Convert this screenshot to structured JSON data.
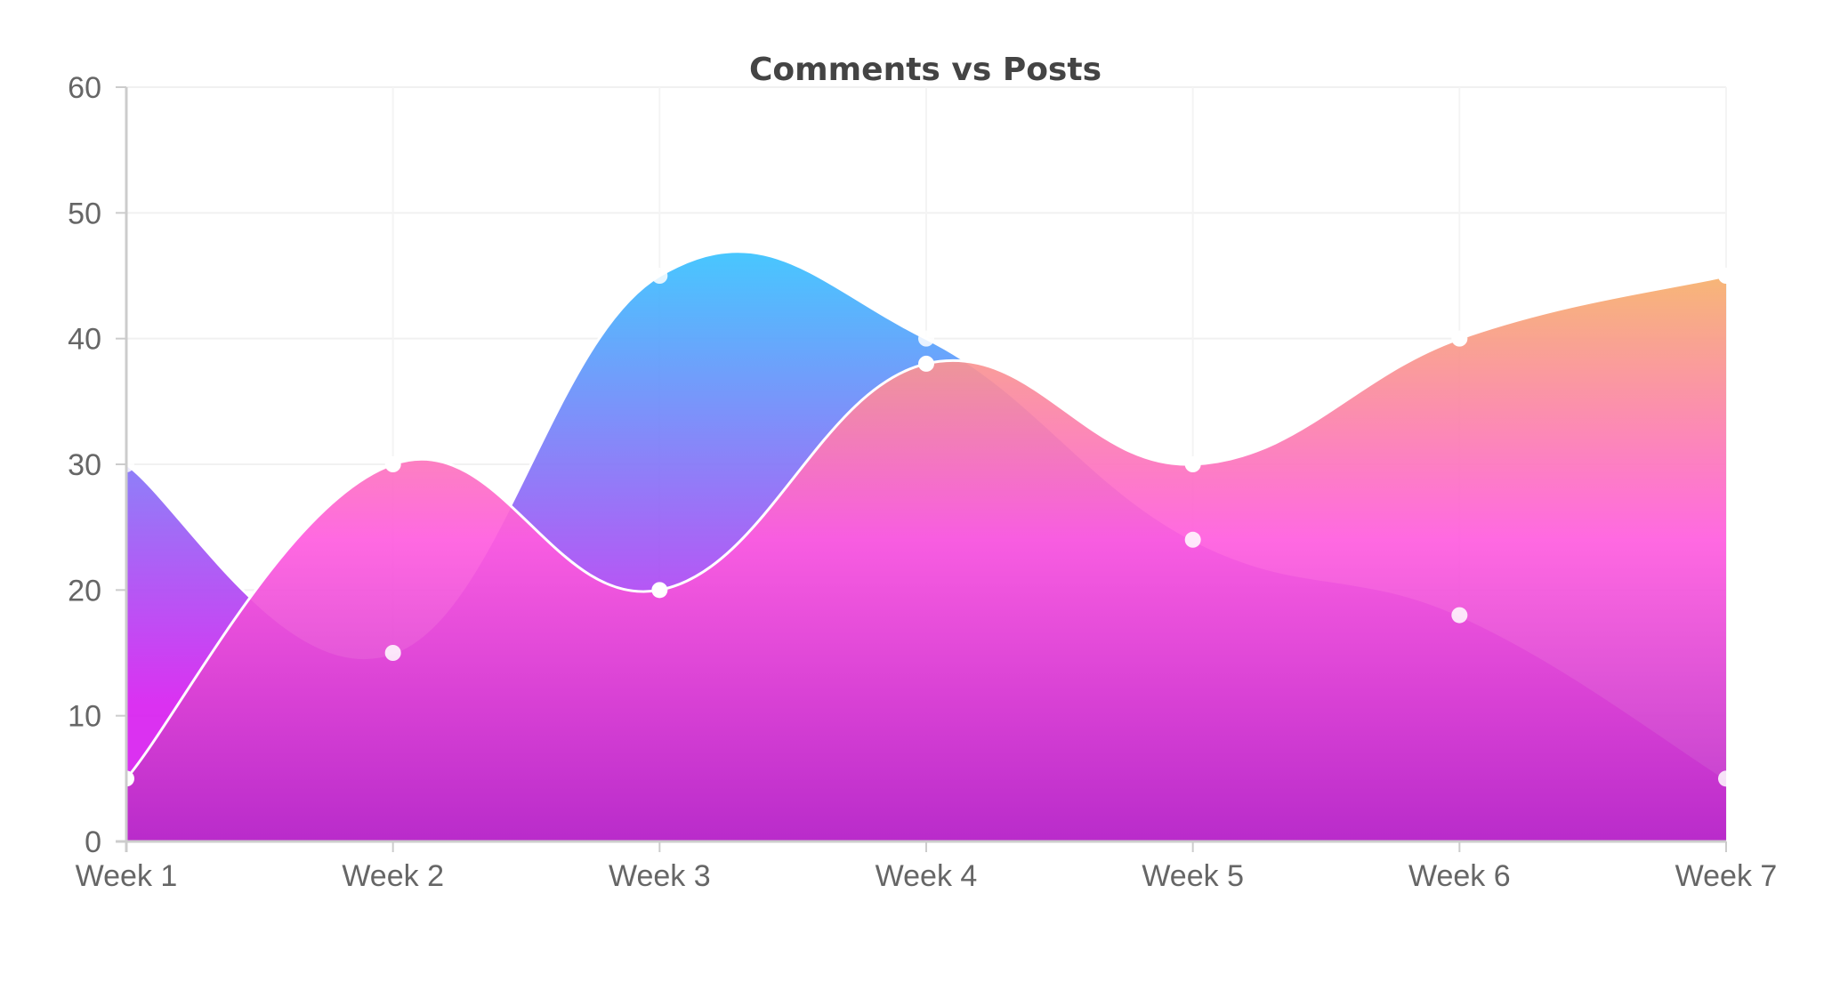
{
  "chart_data": {
    "type": "area",
    "title": "Comments vs Posts",
    "categories": [
      "Week 1",
      "Week 2",
      "Week 3",
      "Week 4",
      "Week 5",
      "Week 6",
      "Week 7"
    ],
    "yticks": [
      0,
      10,
      20,
      30,
      40,
      50,
      60
    ],
    "ylim": [
      0,
      60
    ],
    "grid": true,
    "legend": "none",
    "series": [
      {
        "values": [
          30,
          15,
          45,
          40,
          24,
          18,
          5
        ],
        "gradient": [
          "#33c7ff",
          "#d81ff0"
        ]
      },
      {
        "values": [
          5,
          30,
          20,
          38,
          30,
          40,
          45
        ],
        "gradient": [
          "#f5bc5a",
          "#ff5cdf",
          "#b62bc7"
        ]
      }
    ]
  }
}
